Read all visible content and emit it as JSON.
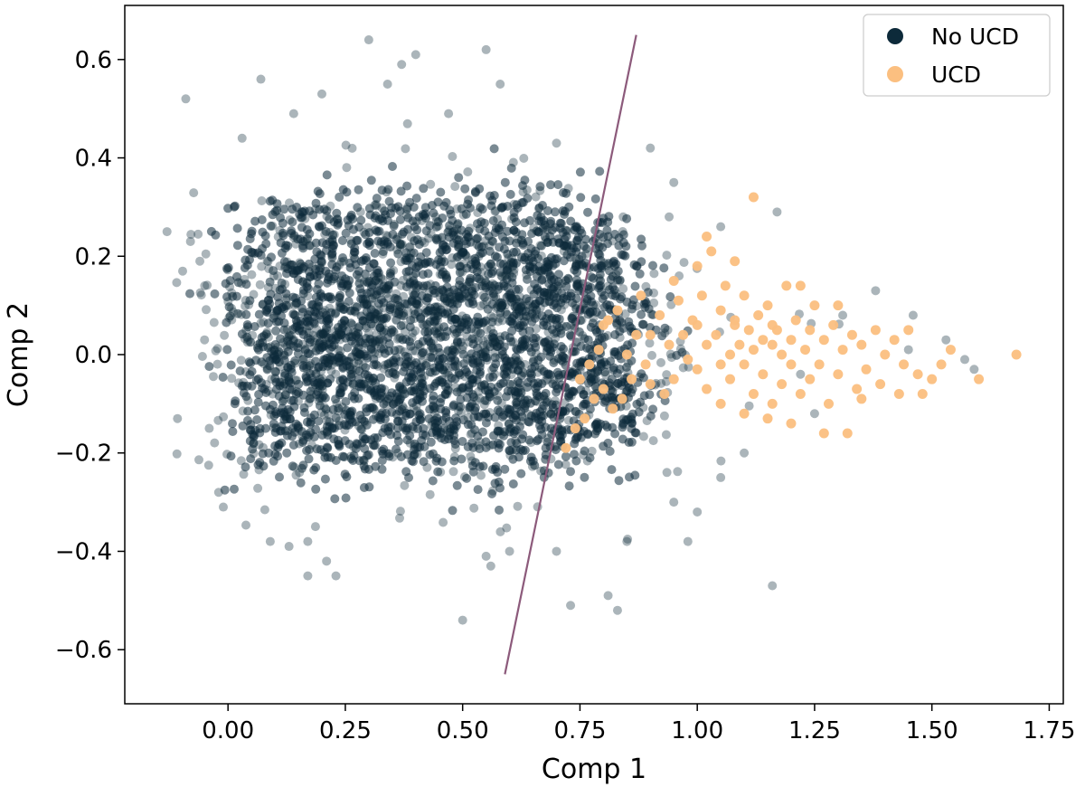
{
  "chart_data": {
    "type": "scatter",
    "title": "",
    "xlabel": "Comp 1",
    "ylabel": "Comp 2",
    "xlim": [
      -0.22,
      1.78
    ],
    "ylim": [
      -0.71,
      0.71
    ],
    "grid": false,
    "legend_position": "top-right",
    "x_ticks": [
      0.0,
      0.25,
      0.5,
      0.75,
      1.0,
      1.25,
      1.5,
      1.75
    ],
    "x_tick_labels": [
      "0.00",
      "0.25",
      "0.50",
      "0.75",
      "1.00",
      "1.25",
      "1.50",
      "1.75"
    ],
    "y_ticks": [
      -0.6,
      -0.4,
      -0.2,
      0.0,
      0.2,
      0.4,
      0.6
    ],
    "y_tick_labels": [
      "−0.6",
      "−0.4",
      "−0.2",
      "0.0",
      "0.2",
      "0.4",
      "0.6"
    ],
    "series": [
      {
        "name": "No UCD",
        "color": "#0d2a3a",
        "distribution": {
          "x_range": [
            0.0,
            0.8
          ],
          "y_range": [
            -0.28,
            0.38
          ],
          "dense_core": true
        },
        "outlier_points": [
          [
            -0.13,
            0.25
          ],
          [
            -0.09,
            0.52
          ],
          [
            -0.08,
            0.23
          ],
          [
            -0.06,
            0.19
          ],
          [
            -0.05,
            0.03
          ],
          [
            -0.04,
            -0.15
          ],
          [
            -0.02,
            -0.28
          ],
          [
            -0.01,
            -0.31
          ],
          [
            0.07,
            0.56
          ],
          [
            0.03,
            0.44
          ],
          [
            0.14,
            0.49
          ],
          [
            0.2,
            0.53
          ],
          [
            0.3,
            0.64
          ],
          [
            0.34,
            0.55
          ],
          [
            0.37,
            0.59
          ],
          [
            0.4,
            0.61
          ],
          [
            0.55,
            0.62
          ],
          [
            0.58,
            0.55
          ],
          [
            0.47,
            0.49
          ],
          [
            0.7,
            0.43
          ],
          [
            0.9,
            0.42
          ],
          [
            0.95,
            0.35
          ],
          [
            1.17,
            0.29
          ],
          [
            1.05,
            0.26
          ],
          [
            0.94,
            0.28
          ],
          [
            1.38,
            0.13
          ],
          [
            1.46,
            0.08
          ],
          [
            1.53,
            0.03
          ],
          [
            1.57,
            -0.01
          ],
          [
            1.59,
            -0.03
          ],
          [
            1.31,
            0.08
          ],
          [
            1.25,
            -0.12
          ],
          [
            1.1,
            -0.2
          ],
          [
            1.05,
            -0.25
          ],
          [
            1.0,
            -0.32
          ],
          [
            0.98,
            -0.38
          ],
          [
            0.73,
            -0.51
          ],
          [
            0.83,
            -0.52
          ],
          [
            0.81,
            -0.49
          ],
          [
            0.5,
            -0.54
          ],
          [
            0.56,
            -0.43
          ],
          [
            0.6,
            -0.4
          ],
          [
            0.55,
            -0.41
          ],
          [
            0.23,
            -0.45
          ],
          [
            0.21,
            -0.42
          ],
          [
            0.17,
            -0.45
          ],
          [
            0.13,
            -0.39
          ],
          [
            0.09,
            -0.38
          ],
          [
            0.17,
            -0.38
          ],
          [
            1.16,
            -0.47
          ],
          [
            0.85,
            -0.38
          ],
          [
            0.95,
            -0.3
          ],
          [
            0.7,
            -0.4
          ],
          [
            1.22,
            -0.04
          ],
          [
            1.45,
            0.01
          ]
        ]
      },
      {
        "name": "UCD",
        "color": "#fbbf80",
        "points": [
          [
            0.75,
            -0.05
          ],
          [
            0.77,
            -0.02
          ],
          [
            0.79,
            0.01
          ],
          [
            0.8,
            -0.07
          ],
          [
            0.82,
            -0.11
          ],
          [
            0.83,
            0.09
          ],
          [
            0.8,
            0.06
          ],
          [
            0.84,
            -0.09
          ],
          [
            0.86,
            -0.05
          ],
          [
            0.87,
            0.04
          ],
          [
            0.89,
            -0.02
          ],
          [
            0.72,
            -0.19
          ],
          [
            0.76,
            -0.13
          ],
          [
            0.78,
            -0.09
          ],
          [
            0.9,
            -0.06
          ],
          [
            0.92,
            0.08
          ],
          [
            0.94,
            0.02
          ],
          [
            0.95,
            -0.05
          ],
          [
            0.96,
            0.11
          ],
          [
            0.97,
            0.04
          ],
          [
            0.98,
            -0.01
          ],
          [
            0.99,
            0.07
          ],
          [
            1.0,
            -0.03
          ],
          [
            1.0,
            0.06
          ],
          [
            1.01,
            0.12
          ],
          [
            1.02,
            0.02
          ],
          [
            1.02,
            -0.07
          ],
          [
            1.03,
            0.21
          ],
          [
            1.04,
            0.04
          ],
          [
            1.05,
            -0.02
          ],
          [
            1.05,
            0.09
          ],
          [
            1.06,
            0.14
          ],
          [
            1.07,
            0.0
          ],
          [
            1.07,
            -0.05
          ],
          [
            1.08,
            0.06
          ],
          [
            1.09,
            0.02
          ],
          [
            1.1,
            -0.02
          ],
          [
            1.1,
            0.12
          ],
          [
            1.11,
            0.05
          ],
          [
            1.12,
            0.01
          ],
          [
            1.12,
            -0.08
          ],
          [
            1.13,
            0.08
          ],
          [
            1.14,
            0.03
          ],
          [
            1.14,
            -0.04
          ],
          [
            1.15,
            0.1
          ],
          [
            1.16,
            0.02
          ],
          [
            1.16,
            -0.1
          ],
          [
            1.17,
            0.05
          ],
          [
            1.18,
            0.0
          ],
          [
            1.18,
            -0.06
          ],
          [
            1.19,
            0.14
          ],
          [
            1.2,
            0.03
          ],
          [
            1.2,
            -0.02
          ],
          [
            1.21,
            0.07
          ],
          [
            1.22,
            -0.08
          ],
          [
            1.23,
            0.01
          ],
          [
            1.24,
            0.05
          ],
          [
            1.24,
            -0.05
          ],
          [
            1.25,
            0.1
          ],
          [
            1.26,
            -0.02
          ],
          [
            1.27,
            0.03
          ],
          [
            1.28,
            -0.1
          ],
          [
            1.29,
            0.06
          ],
          [
            1.3,
            -0.04
          ],
          [
            1.31,
            0.01
          ],
          [
            1.32,
            -0.16
          ],
          [
            1.33,
            0.04
          ],
          [
            1.34,
            -0.07
          ],
          [
            1.35,
            0.02
          ],
          [
            1.36,
            -0.03
          ],
          [
            1.38,
            0.05
          ],
          [
            1.39,
            -0.06
          ],
          [
            1.4,
            0.0
          ],
          [
            1.42,
            0.03
          ],
          [
            1.43,
            -0.08
          ],
          [
            1.44,
            -0.02
          ],
          [
            1.47,
            -0.04
          ],
          [
            1.5,
            -0.05
          ],
          [
            1.52,
            -0.02
          ],
          [
            1.54,
            0.01
          ],
          [
            1.6,
            -0.05
          ],
          [
            1.68,
            0.0
          ],
          [
            1.12,
            0.32
          ],
          [
            1.02,
            0.24
          ],
          [
            1.27,
            -0.16
          ],
          [
            1.22,
            0.14
          ],
          [
            1.08,
            0.07
          ],
          [
            1.16,
            0.06
          ],
          [
            1.3,
            0.1
          ],
          [
            0.85,
            0.0
          ],
          [
            0.9,
            0.04
          ],
          [
            0.93,
            -0.08
          ],
          [
            1.05,
            -0.1
          ],
          [
            1.1,
            -0.12
          ],
          [
            1.15,
            -0.13
          ],
          [
            1.2,
            -0.14
          ],
          [
            1.35,
            -0.09
          ],
          [
            1.45,
            0.05
          ],
          [
            1.48,
            -0.08
          ],
          [
            0.74,
            -0.15
          ],
          [
            0.81,
            0.07
          ],
          [
            0.88,
            0.12
          ],
          [
            0.95,
            0.15
          ],
          [
            1.0,
            0.18
          ],
          [
            1.08,
            0.19
          ]
        ]
      }
    ],
    "decision_line": {
      "color": "#8c5a7b",
      "from": [
        0.59,
        -0.65
      ],
      "to": [
        0.87,
        0.65
      ]
    }
  }
}
